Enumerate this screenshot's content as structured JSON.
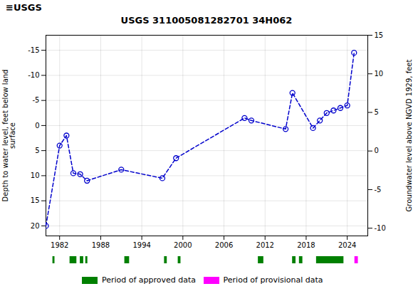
{
  "chart_data": {
    "type": "line",
    "title": "USGS 311005081282701 34H062",
    "annotations": [
      "≡USGS"
    ],
    "ylabel": "Depth to water level, feet below land\nsurface",
    "y2label": "Groundwater level above NGVD 1929, feet",
    "x": [
      1980,
      1982,
      1983,
      1984,
      1985,
      1986,
      1991,
      1997,
      1999,
      2009,
      2010,
      2015,
      2016,
      2019,
      2020,
      2021,
      2022,
      2023,
      2024,
      2025
    ],
    "values": [
      20,
      4,
      2,
      9.5,
      9.7,
      11.0,
      8.8,
      10.5,
      6.5,
      -1.5,
      -1.0,
      0.7,
      -6.5,
      0.5,
      -1.0,
      -2.5,
      -3.0,
      -3.5,
      -4.0,
      -14.5
    ],
    "color": "#0000cc",
    "marker": "circle",
    "line_style": "dashed",
    "xlim": [
      1980,
      2027
    ],
    "xticks": [
      1982,
      1988,
      1994,
      2000,
      2006,
      2012,
      2018,
      2024
    ],
    "ylim": [
      22,
      -18
    ],
    "yticks": [
      -15,
      -10,
      -5,
      0,
      5,
      10,
      15,
      20
    ],
    "y2lim": [
      -11,
      15
    ],
    "y2ticks": [
      15,
      10,
      5,
      0,
      -5,
      -10
    ],
    "grid": true,
    "legend": "bottom",
    "periods": [
      {
        "name": "Period of approved data",
        "color": "#008000",
        "segments": [
          [
            1981.0,
            1981.3
          ],
          [
            1983.5,
            1984.5
          ],
          [
            1985.0,
            1985.5
          ],
          [
            1985.8,
            1986.1
          ],
          [
            1991.5,
            1992.2
          ],
          [
            1997.3,
            1997.7
          ],
          [
            1999.3,
            1999.7
          ],
          [
            2011.0,
            2011.8
          ],
          [
            2016.0,
            2016.5
          ],
          [
            2017.0,
            2017.5
          ],
          [
            2019.5,
            2023.5
          ]
        ]
      },
      {
        "name": "Period of provisional data",
        "color": "#ff00ff",
        "segments": [
          [
            2025.1,
            2025.6
          ]
        ]
      }
    ]
  }
}
